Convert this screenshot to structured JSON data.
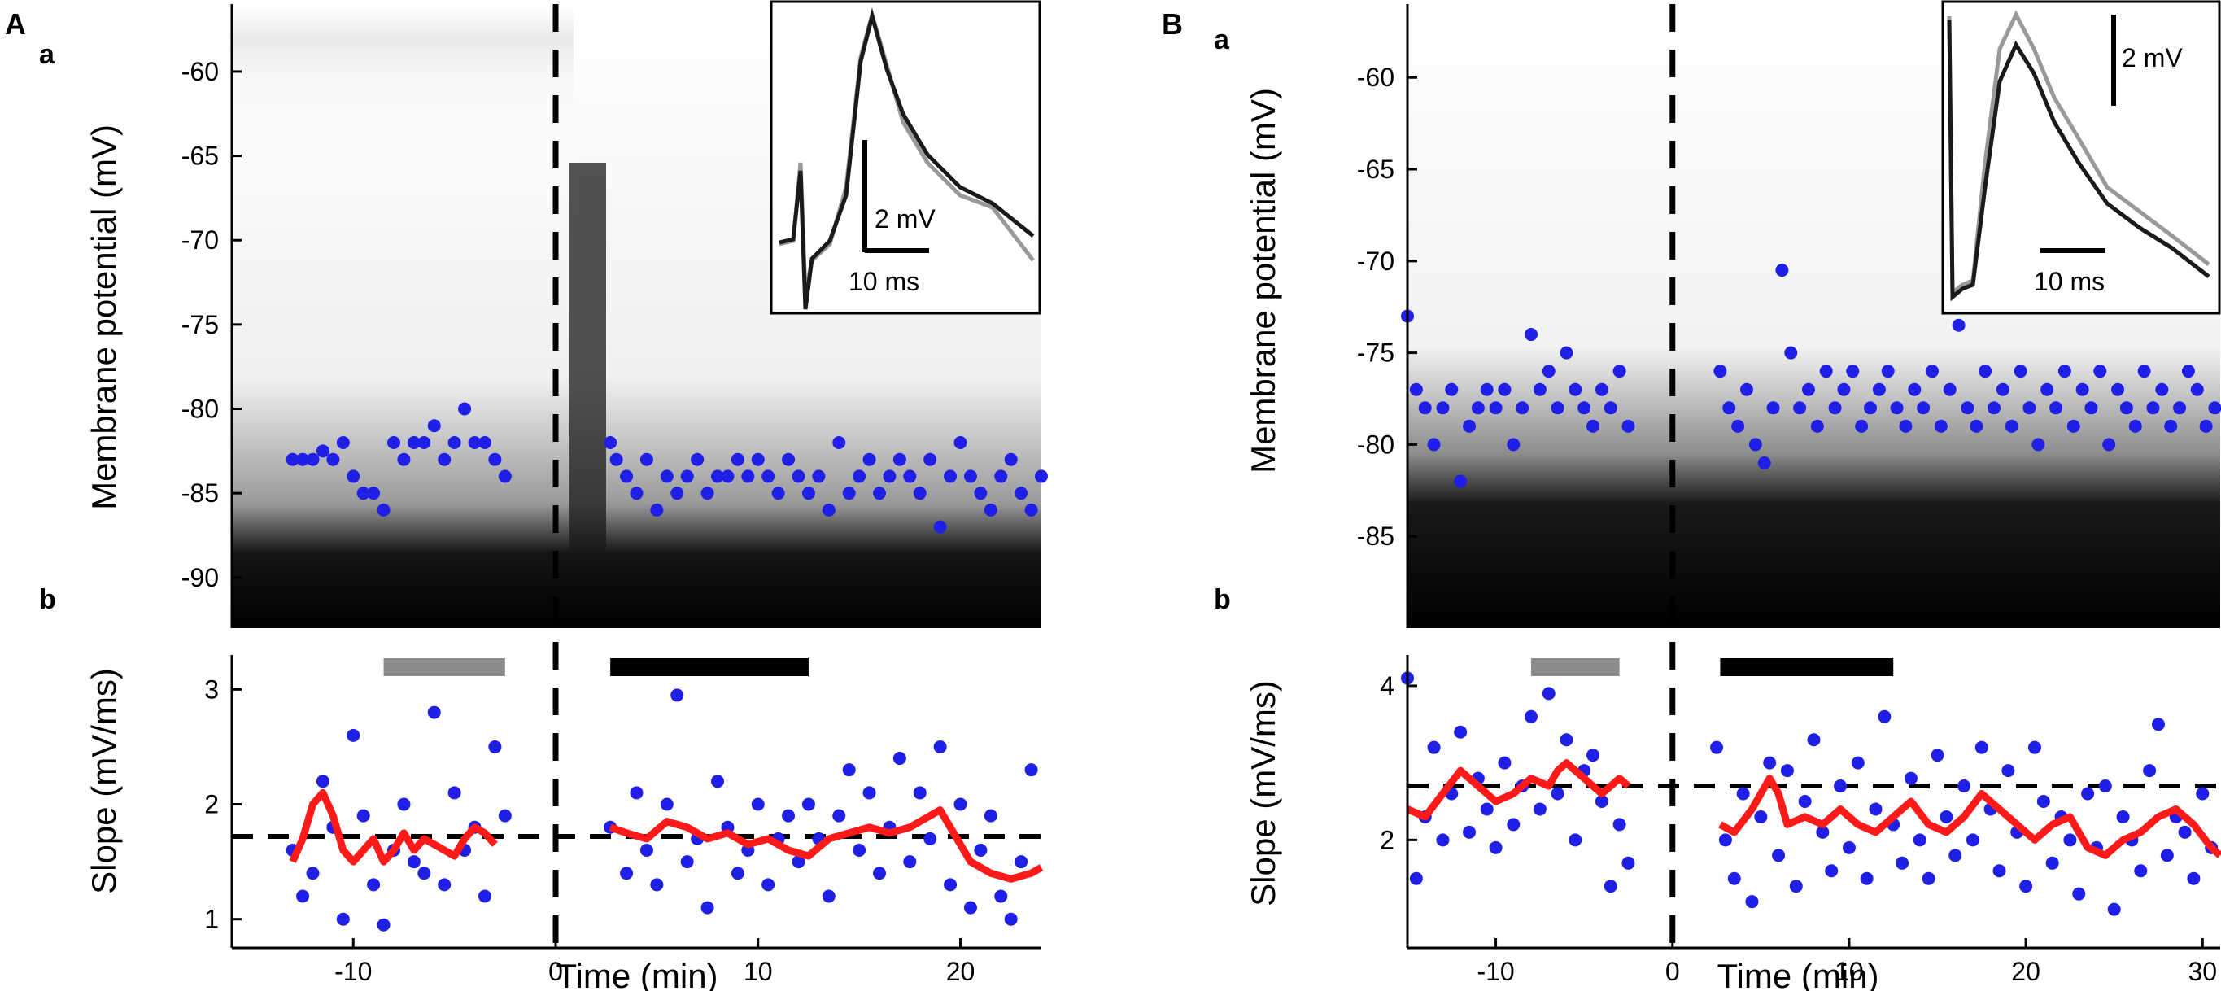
{
  "panel_A": {
    "label": "A"
  },
  "panel_B": {
    "label": "B"
  },
  "sub_a_label": "a",
  "sub_b_label": "b",
  "colors": {
    "points": "#1f1fe6",
    "running_mean": "#ff1a1a",
    "baseline_bar": "#8c8c8c",
    "post_bar": "#000000",
    "trace_pre": "#999999",
    "trace_post": "#1a1a1a"
  },
  "chart_data": [
    {
      "id": "A-a",
      "type": "scatter",
      "title": "",
      "xlabel": "",
      "ylabel": "Membrane potential (mV)",
      "xlim": [
        -16,
        24
      ],
      "ylim": [
        -93,
        -56
      ],
      "yticks": [
        -60,
        -65,
        -70,
        -75,
        -80,
        -85,
        -90
      ],
      "yticklabels": [
        "-60",
        "-65",
        "-70",
        "-75",
        "-80",
        "-85",
        "-90"
      ],
      "event_line_x": 0,
      "background": "grayscale density of membrane potential traces",
      "points_pre": {
        "x": [
          -13.0,
          -12.5,
          -12.0,
          -11.5,
          -11.0,
          -10.5,
          -10.0,
          -9.5,
          -9.0,
          -8.5,
          -8.0,
          -7.5,
          -7.0,
          -6.5,
          -6.0,
          -5.5,
          -5.0,
          -4.5,
          -4.0,
          -3.5,
          -3.0,
          -2.5
        ],
        "y": [
          -83,
          -83,
          -83,
          -82.5,
          -83,
          -82,
          -84,
          -85,
          -85,
          -86,
          -82,
          -83,
          -82,
          -82,
          -81,
          -83,
          -82,
          -80,
          -82,
          -82,
          -83,
          -84
        ]
      },
      "points_post": {
        "x": [
          2.7,
          3.0,
          3.5,
          4.0,
          4.5,
          5.0,
          5.5,
          6.0,
          6.5,
          7.0,
          7.5,
          8.0,
          8.5,
          9.0,
          9.5,
          10.0,
          10.5,
          11.0,
          11.5,
          12.0,
          12.5,
          13.0,
          13.5,
          14.0,
          14.5,
          15.0,
          15.5,
          16.0,
          16.5,
          17.0,
          17.5,
          18.0,
          18.5,
          19.0,
          19.5,
          20.0,
          20.5,
          21.0,
          21.5,
          22.0,
          22.5,
          23.0,
          23.5,
          24.0
        ],
        "y": [
          -82,
          -83,
          -84,
          -85,
          -83,
          -86,
          -84,
          -85,
          -84,
          -83,
          -85,
          -84,
          -84,
          -83,
          -84,
          -83,
          -84,
          -85,
          -83,
          -84,
          -85,
          -84,
          -86,
          -82,
          -85,
          -84,
          -83,
          -85,
          -84,
          -83,
          -84,
          -85,
          -83,
          -87,
          -84,
          -82,
          -84,
          -85,
          -86,
          -84,
          -83,
          -85,
          -86,
          -84
        ]
      },
      "inset": {
        "voltage_scale_label": "2 mV",
        "time_scale_label": "10 ms"
      }
    },
    {
      "id": "A-b",
      "type": "scatter",
      "xlabel": "Time (min)",
      "ylabel": "Slope (mV/ms)",
      "xlim": [
        -16,
        24
      ],
      "ylim": [
        0.75,
        3.3
      ],
      "xticks": [
        -10,
        0,
        10,
        20
      ],
      "xticklabels": [
        "-10",
        "0",
        "10",
        "20"
      ],
      "yticks": [
        1,
        2,
        3
      ],
      "yticklabels": [
        "1",
        "2",
        "3"
      ],
      "baseline_level": 1.72,
      "event_line_x": 0,
      "baseline_period": [
        -8.5,
        -2.5
      ],
      "post_period": [
        2.7,
        12.5
      ],
      "points_pre": {
        "x": [
          -13,
          -12.5,
          -12,
          -11.5,
          -11,
          -10.5,
          -10,
          -9.5,
          -9,
          -8.5,
          -8,
          -7.5,
          -7,
          -6.5,
          -6,
          -5.5,
          -5,
          -4.5,
          -4,
          -3.5,
          -3,
          -2.5
        ],
        "y": [
          1.6,
          1.2,
          1.4,
          2.2,
          1.8,
          1.0,
          2.6,
          1.9,
          1.3,
          0.95,
          1.6,
          2.0,
          1.5,
          1.4,
          2.8,
          1.3,
          2.1,
          1.6,
          1.8,
          1.2,
          2.5,
          1.9
        ]
      },
      "points_post": {
        "x": [
          2.7,
          3.5,
          4,
          4.5,
          5,
          5.5,
          6,
          6.5,
          7,
          7.5,
          8,
          8.5,
          9,
          9.5,
          10,
          10.5,
          11,
          11.5,
          12,
          12.5,
          13,
          13.5,
          14,
          14.5,
          15,
          15.5,
          16,
          16.5,
          17,
          17.5,
          18,
          18.5,
          19,
          19.5,
          20,
          20.5,
          21,
          21.5,
          22,
          22.5,
          23,
          23.5
        ],
        "y": [
          1.8,
          1.4,
          2.1,
          1.6,
          1.3,
          2.0,
          2.95,
          1.5,
          1.7,
          1.1,
          2.2,
          1.8,
          1.4,
          1.6,
          2.0,
          1.3,
          1.7,
          1.9,
          1.5,
          2.0,
          1.7,
          1.2,
          1.9,
          2.3,
          1.6,
          2.1,
          1.4,
          1.8,
          2.4,
          1.5,
          2.1,
          1.7,
          2.5,
          1.3,
          2.0,
          1.1,
          1.6,
          1.9,
          1.2,
          1.0,
          1.5,
          2.3
        ]
      },
      "running_mean": {
        "x": [
          -13,
          -12.5,
          -12,
          -11.5,
          -11,
          -10.5,
          -10,
          -9.5,
          -9,
          -8.5,
          -8,
          -7.5,
          -7,
          -6.5,
          -6,
          -5.5,
          -5,
          -4.5,
          -4,
          -3.5,
          -3
        ],
        "y": [
          1.5,
          1.7,
          2.0,
          2.1,
          1.9,
          1.6,
          1.5,
          1.6,
          1.7,
          1.5,
          1.6,
          1.75,
          1.6,
          1.7,
          1.65,
          1.6,
          1.55,
          1.7,
          1.8,
          1.75,
          1.65
        ]
      },
      "running_mean_post": {
        "x": [
          2.7,
          3.5,
          4.5,
          5.5,
          6.5,
          7.5,
          8.5,
          9.5,
          10.5,
          11.5,
          12.5,
          13.5,
          14.5,
          15.5,
          16.5,
          17.5,
          18.5,
          19.0,
          19.5,
          20.5,
          21.5,
          22.5,
          23.5,
          24
        ],
        "y": [
          1.8,
          1.75,
          1.7,
          1.85,
          1.8,
          1.7,
          1.75,
          1.65,
          1.7,
          1.6,
          1.55,
          1.7,
          1.75,
          1.8,
          1.75,
          1.8,
          1.9,
          1.95,
          1.8,
          1.5,
          1.4,
          1.35,
          1.4,
          1.45
        ]
      }
    },
    {
      "id": "B-a",
      "type": "scatter",
      "ylabel": "Membrane potential (mV)",
      "xlim": [
        -15,
        31
      ],
      "ylim": [
        -90,
        -56
      ],
      "yticks": [
        -60,
        -65,
        -70,
        -75,
        -80,
        -85
      ],
      "yticklabels": [
        "-60",
        "-65",
        "-70",
        "-75",
        "-80",
        "-85"
      ],
      "event_line_x": 0,
      "points_pre": {
        "x": [
          -15,
          -14.5,
          -14,
          -13.5,
          -13,
          -12.5,
          -12,
          -11.5,
          -11,
          -10.5,
          -10,
          -9.5,
          -9,
          -8.5,
          -8,
          -7.5,
          -7,
          -6.5,
          -6,
          -5.5,
          -5,
          -4.5,
          -4,
          -3.5,
          -3,
          -2.5
        ],
        "y": [
          -73,
          -77,
          -78,
          -80,
          -78,
          -77,
          -82,
          -79,
          -78,
          -77,
          -78,
          -77,
          -80,
          -78,
          -74,
          -77,
          -76,
          -78,
          -75,
          -77,
          -78,
          -79,
          -77,
          -78,
          -76,
          -79
        ]
      },
      "points_post": {
        "x": [
          2.7,
          3.2,
          3.7,
          4.2,
          4.7,
          5.2,
          5.7,
          6.2,
          6.7,
          7.2,
          7.7,
          8.2,
          8.7,
          9.2,
          9.7,
          10.2,
          10.7,
          11.2,
          11.7,
          12.2,
          12.7,
          13.2,
          13.7,
          14.2,
          14.7,
          15.2,
          15.7,
          16.2,
          16.7,
          17.2,
          17.7,
          18.2,
          18.7,
          19.2,
          19.7,
          20.2,
          20.7,
          21.2,
          21.7,
          22.2,
          22.7,
          23.2,
          23.7,
          24.2,
          24.7,
          25.2,
          25.7,
          26.2,
          26.7,
          27.2,
          27.7,
          28.2,
          28.7,
          29.2,
          29.7,
          30.2,
          30.7
        ],
        "y": [
          -76,
          -78,
          -79,
          -77,
          -80,
          -81,
          -78,
          -70.5,
          -75,
          -78,
          -77,
          -79,
          -76,
          -78,
          -77,
          -76,
          -79,
          -78,
          -77,
          -76,
          -78,
          -79,
          -77,
          -78,
          -76,
          -79,
          -77,
          -73.5,
          -78,
          -79,
          -76,
          -78,
          -77,
          -79,
          -76,
          -78,
          -80,
          -77,
          -78,
          -76,
          -79,
          -77,
          -78,
          -76,
          -80,
          -77,
          -78,
          -79,
          -76,
          -78,
          -77,
          -79,
          -78,
          -76,
          -77,
          -79,
          -78
        ]
      },
      "inset": {
        "voltage_scale_label": "2 mV",
        "time_scale_label": "10 ms"
      }
    },
    {
      "id": "B-b",
      "type": "scatter",
      "xlabel": "Time (min)",
      "ylabel": "Slope (mV/ms)",
      "xlim": [
        -15,
        31
      ],
      "ylim": [
        0.6,
        4.4
      ],
      "xticks": [
        -10,
        0,
        10,
        20,
        30
      ],
      "xticklabels": [
        "-10",
        "0",
        "10",
        "20",
        "30"
      ],
      "yticks": [
        2,
        4
      ],
      "yticklabels": [
        "2",
        "4"
      ],
      "baseline_level": 2.7,
      "event_line_x": 0,
      "baseline_period": [
        -8,
        -3
      ],
      "post_period": [
        2.7,
        12.5
      ],
      "points_pre": {
        "x": [
          -15,
          -14.5,
          -14,
          -13.5,
          -13,
          -12.5,
          -12,
          -11.5,
          -11,
          -10.5,
          -10,
          -9.5,
          -9,
          -8.5,
          -8,
          -7.5,
          -7,
          -6.5,
          -6,
          -5.5,
          -5,
          -4.5,
          -4,
          -3.5,
          -3,
          -2.5
        ],
        "y": [
          4.1,
          1.5,
          2.3,
          3.2,
          2.0,
          2.6,
          3.4,
          2.1,
          2.8,
          2.4,
          1.9,
          3.0,
          2.2,
          2.7,
          3.6,
          2.4,
          3.9,
          2.6,
          3.3,
          2.0,
          2.9,
          3.1,
          2.5,
          1.4,
          2.2,
          1.7
        ]
      },
      "points_post": {
        "x": [
          2.5,
          3,
          3.5,
          4,
          4.5,
          5,
          5.5,
          6,
          6.5,
          7,
          7.5,
          8,
          8.5,
          9,
          9.5,
          10,
          10.5,
          11,
          11.5,
          12,
          12.5,
          13,
          13.5,
          14,
          14.5,
          15,
          15.5,
          16,
          16.5,
          17,
          17.5,
          18,
          18.5,
          19,
          19.5,
          20,
          20.5,
          21,
          21.5,
          22,
          22.5,
          23,
          23.5,
          24,
          24.5,
          25,
          25.5,
          26,
          26.5,
          27,
          27.5,
          28,
          28.5,
          29,
          29.5,
          30,
          30.5
        ],
        "y": [
          3.2,
          2.0,
          1.5,
          2.6,
          1.2,
          2.3,
          3.0,
          1.8,
          2.9,
          1.4,
          2.5,
          3.3,
          2.1,
          1.6,
          2.7,
          1.9,
          3.0,
          1.5,
          2.4,
          3.6,
          2.2,
          1.7,
          2.8,
          2.0,
          1.5,
          3.1,
          2.3,
          1.8,
          2.7,
          2.0,
          3.2,
          2.4,
          1.6,
          2.9,
          2.1,
          1.4,
          3.2,
          2.5,
          1.7,
          2.3,
          2.0,
          1.3,
          2.6,
          1.9,
          2.7,
          1.1,
          2.3,
          2.0,
          1.6,
          2.9,
          3.5,
          1.8,
          2.3,
          2.1,
          1.5,
          2.6,
          1.9
        ]
      },
      "running_mean": {
        "x": [
          -15,
          -14,
          -13,
          -12,
          -11.5,
          -11,
          -10,
          -9,
          -8,
          -7,
          -6.5,
          -6,
          -5.5,
          -5,
          -4.5,
          -4,
          -3.5,
          -3,
          -2.5
        ],
        "y": [
          2.4,
          2.3,
          2.6,
          2.9,
          2.8,
          2.7,
          2.5,
          2.6,
          2.8,
          2.7,
          2.9,
          3.0,
          2.9,
          2.8,
          2.7,
          2.6,
          2.7,
          2.8,
          2.7
        ]
      },
      "running_mean_post": {
        "x": [
          2.7,
          3.5,
          4.5,
          5.5,
          6,
          6.5,
          7.5,
          8.5,
          9.5,
          10.5,
          11.5,
          12.5,
          13.5,
          14.5,
          15.5,
          16.5,
          17.5,
          18.5,
          19.5,
          20.5,
          21.5,
          22.5,
          23.5,
          24.5,
          25.5,
          26.5,
          27.5,
          28.5,
          29.5,
          30.5,
          31
        ],
        "y": [
          2.2,
          2.1,
          2.4,
          2.8,
          2.6,
          2.2,
          2.3,
          2.2,
          2.4,
          2.2,
          2.1,
          2.3,
          2.5,
          2.2,
          2.1,
          2.3,
          2.6,
          2.4,
          2.2,
          2.0,
          2.2,
          2.3,
          1.9,
          1.8,
          2.0,
          2.1,
          2.3,
          2.4,
          2.2,
          1.9,
          1.8
        ]
      }
    }
  ]
}
